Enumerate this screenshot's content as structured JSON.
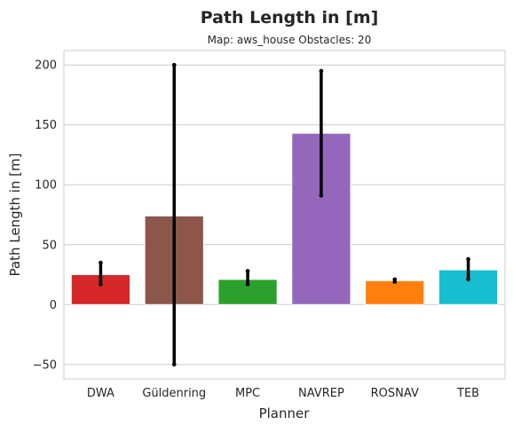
{
  "chart_data": {
    "type": "bar",
    "title": "Path Length in [m]",
    "subtitle": "Map: aws_house Obstacles: 20",
    "xlabel": "Planner",
    "ylabel": "Path Length in [m]",
    "ylim": [
      -62,
      212
    ],
    "yticks": [
      -50,
      0,
      50,
      100,
      150,
      200
    ],
    "ytick_labels": [
      "−50",
      "0",
      "50",
      "100",
      "150",
      "200"
    ],
    "grid": "horizontal",
    "categories": [
      "DWA",
      "Güldenring",
      "MPC",
      "NAVREP",
      "ROSNAV",
      "TEB"
    ],
    "values": [
      25,
      74,
      21,
      143,
      20,
      29
    ],
    "error_low": [
      17,
      -50,
      17,
      91,
      19,
      21
    ],
    "error_high": [
      35,
      200,
      28,
      195,
      21,
      38
    ],
    "colors": [
      "#d62728",
      "#8c564b",
      "#2ca02c",
      "#9467bd",
      "#ff7f0e",
      "#17becf"
    ]
  }
}
